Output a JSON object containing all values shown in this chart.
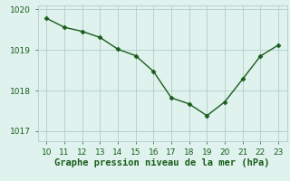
{
  "x": [
    10,
    11,
    12,
    13,
    14,
    15,
    16,
    17,
    18,
    19,
    20,
    21,
    22,
    23
  ],
  "y": [
    1019.78,
    1019.56,
    1019.46,
    1019.31,
    1019.02,
    1018.86,
    1018.47,
    1017.82,
    1017.67,
    1017.38,
    1017.72,
    1018.28,
    1018.85,
    1019.12
  ],
  "line_color": "#1a5c1a",
  "marker": "D",
  "marker_size": 2.5,
  "line_width": 1.0,
  "background_color": "#dff2ee",
  "grid_color": "#b0cfc8",
  "xlabel": "Graphe pression niveau de la mer (hPa)",
  "xlabel_fontsize": 7.5,
  "xlabel_color": "#1a5c1a",
  "ylim": [
    1016.75,
    1020.1
  ],
  "xlim": [
    9.5,
    23.5
  ],
  "yticks": [
    1017,
    1018,
    1019,
    1020
  ],
  "xticks": [
    10,
    11,
    12,
    13,
    14,
    15,
    16,
    17,
    18,
    19,
    20,
    21,
    22,
    23
  ],
  "tick_fontsize": 6.5,
  "tick_color": "#1a5c1a"
}
